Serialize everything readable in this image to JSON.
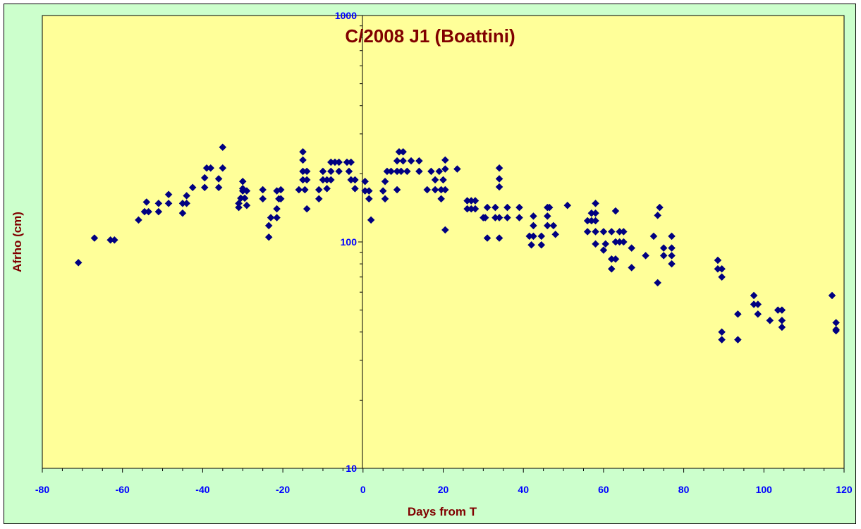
{
  "colors": {
    "background": "#ccffcc",
    "plot_area": "#ffff99",
    "marker": "#000080",
    "tick_label": "#0000ff",
    "title": "#800000"
  },
  "chart_data": {
    "type": "scatter",
    "title": "C/2008 J1 (Boattini)",
    "xlabel": "Days from T",
    "ylabel": "Afrho (cm)",
    "xlim": [
      -80,
      120
    ],
    "ylim": [
      10,
      1000
    ],
    "y_scale": "log",
    "grid": false,
    "legend": "none",
    "marker": "diamond",
    "x_ticks": [
      -80,
      -60,
      -40,
      -20,
      0,
      20,
      40,
      60,
      80,
      100,
      120
    ],
    "x_tick_labels": [
      "-80",
      "-60",
      "-40",
      "-20",
      "0",
      "20",
      "40",
      "60",
      "80",
      "100",
      "120"
    ],
    "y_ticks": [
      10,
      100,
      1000
    ],
    "y_tick_labels": [
      "10",
      "100",
      "1000"
    ],
    "series": [
      {
        "points": [
          [
            -71,
            81
          ],
          [
            -67,
            104
          ],
          [
            -63,
            102
          ],
          [
            -62,
            102
          ],
          [
            -56,
            125
          ],
          [
            -54.5,
            136
          ],
          [
            -54,
            150
          ],
          [
            -53.5,
            136
          ],
          [
            -51,
            136
          ],
          [
            -51,
            148
          ],
          [
            -48.5,
            148
          ],
          [
            -48.5,
            162
          ],
          [
            -45,
            134
          ],
          [
            -45,
            148
          ],
          [
            -44,
            148
          ],
          [
            -44,
            160
          ],
          [
            -42.5,
            174
          ],
          [
            -39.5,
            174
          ],
          [
            -39.5,
            192
          ],
          [
            -39,
            212
          ],
          [
            -38,
            212
          ],
          [
            -36,
            174
          ],
          [
            -36,
            190
          ],
          [
            -35,
            212
          ],
          [
            -35,
            262
          ],
          [
            -31,
            142
          ],
          [
            -31,
            148
          ],
          [
            -30.5,
            156
          ],
          [
            -30,
            168
          ],
          [
            -30,
            172
          ],
          [
            -30,
            185
          ],
          [
            -29.5,
            156
          ],
          [
            -29,
            145
          ],
          [
            -29,
            168
          ],
          [
            -25,
            155
          ],
          [
            -25,
            170
          ],
          [
            -23.5,
            105
          ],
          [
            -23.5,
            118
          ],
          [
            -23,
            128
          ],
          [
            -21.5,
            140
          ],
          [
            -21.5,
            168
          ],
          [
            -21.5,
            128
          ],
          [
            -21,
            155
          ],
          [
            -20.5,
            155
          ],
          [
            -20.5,
            170
          ],
          [
            -16,
            170
          ],
          [
            -15,
            230
          ],
          [
            -15,
            250
          ],
          [
            -15,
            205
          ],
          [
            -15,
            188
          ],
          [
            -14.5,
            170
          ],
          [
            -14,
            205
          ],
          [
            -14,
            188
          ],
          [
            -14,
            140
          ],
          [
            -11,
            155
          ],
          [
            -11,
            170
          ],
          [
            -10,
            188
          ],
          [
            -10,
            205
          ],
          [
            -9,
            172
          ],
          [
            -9,
            188
          ],
          [
            -8,
            188
          ],
          [
            -8,
            205
          ],
          [
            -8,
            225
          ],
          [
            -7,
            225
          ],
          [
            -6,
            205
          ],
          [
            -6,
            225
          ],
          [
            -4,
            225
          ],
          [
            -3.5,
            205
          ],
          [
            -3,
            188
          ],
          [
            -3,
            225
          ],
          [
            -2,
            188
          ],
          [
            -2,
            172
          ],
          [
            0.5,
            185
          ],
          [
            0.5,
            168
          ],
          [
            1.5,
            168
          ],
          [
            1.5,
            155
          ],
          [
            2,
            125
          ],
          [
            5,
            168
          ],
          [
            5.5,
            155
          ],
          [
            5.5,
            185
          ],
          [
            6,
            205
          ],
          [
            7,
            205
          ],
          [
            8.5,
            170
          ],
          [
            8.5,
            205
          ],
          [
            8.5,
            228
          ],
          [
            9,
            250
          ],
          [
            9.5,
            205
          ],
          [
            10,
            228
          ],
          [
            10,
            250
          ],
          [
            11,
            205
          ],
          [
            12,
            228
          ],
          [
            14,
            205
          ],
          [
            14,
            228
          ],
          [
            16,
            170
          ],
          [
            17,
            205
          ],
          [
            18,
            170
          ],
          [
            18,
            188
          ],
          [
            19,
            205
          ],
          [
            19.5,
            155
          ],
          [
            19.5,
            170
          ],
          [
            20,
            188
          ],
          [
            20.5,
            170
          ],
          [
            20.5,
            210
          ],
          [
            20.5,
            230
          ],
          [
            20.5,
            113
          ],
          [
            23.5,
            210
          ],
          [
            26,
            140
          ],
          [
            26,
            152
          ],
          [
            27,
            140
          ],
          [
            27,
            152
          ],
          [
            28,
            140
          ],
          [
            28,
            152
          ],
          [
            30,
            128
          ],
          [
            30.5,
            128
          ],
          [
            31,
            142
          ],
          [
            31,
            104
          ],
          [
            33,
            128
          ],
          [
            33,
            142
          ],
          [
            34,
            128
          ],
          [
            34,
            104
          ],
          [
            34,
            175
          ],
          [
            34,
            190
          ],
          [
            34,
            212
          ],
          [
            36,
            142
          ],
          [
            36,
            128
          ],
          [
            39,
            128
          ],
          [
            39,
            142
          ],
          [
            41.5,
            106
          ],
          [
            42,
            97
          ],
          [
            42.5,
            106
          ],
          [
            42.5,
            118
          ],
          [
            42.5,
            130
          ],
          [
            44.5,
            97
          ],
          [
            44.5,
            106
          ],
          [
            46,
            118
          ],
          [
            46,
            130
          ],
          [
            46,
            142
          ],
          [
            46.5,
            142
          ],
          [
            47.5,
            118
          ],
          [
            48,
            108
          ],
          [
            51,
            145
          ],
          [
            56,
            124
          ],
          [
            56,
            111
          ],
          [
            57,
            124
          ],
          [
            57,
            134
          ],
          [
            58,
            124
          ],
          [
            58,
            111
          ],
          [
            58,
            98
          ],
          [
            58,
            134
          ],
          [
            58,
            148
          ],
          [
            60,
            92
          ],
          [
            60,
            111
          ],
          [
            60.5,
            98
          ],
          [
            62,
            111
          ],
          [
            62,
            84
          ],
          [
            62,
            76
          ],
          [
            63,
            84
          ],
          [
            63,
            100
          ],
          [
            63,
            137
          ],
          [
            64,
            100
          ],
          [
            64,
            111
          ],
          [
            65,
            100
          ],
          [
            65,
            111
          ],
          [
            67,
            94
          ],
          [
            67,
            77
          ],
          [
            70.5,
            87
          ],
          [
            72.5,
            106
          ],
          [
            73.5,
            66
          ],
          [
            73.5,
            131
          ],
          [
            74,
            142
          ],
          [
            75,
            87
          ],
          [
            75,
            94
          ],
          [
            77,
            106
          ],
          [
            77,
            94
          ],
          [
            77,
            87
          ],
          [
            77,
            80
          ],
          [
            88.5,
            83
          ],
          [
            88.5,
            76
          ],
          [
            89.5,
            76
          ],
          [
            89.5,
            70
          ],
          [
            89.5,
            40
          ],
          [
            89.5,
            37
          ],
          [
            93.5,
            48
          ],
          [
            93.5,
            37
          ],
          [
            97.5,
            58
          ],
          [
            97.5,
            53
          ],
          [
            98.5,
            53
          ],
          [
            98.5,
            48
          ],
          [
            101.5,
            45
          ],
          [
            103.5,
            50
          ],
          [
            104.5,
            50
          ],
          [
            104.5,
            45
          ],
          [
            104.5,
            42
          ],
          [
            117,
            58
          ],
          [
            118,
            44
          ],
          [
            118,
            41
          ],
          [
            118,
            40.5
          ]
        ]
      }
    ]
  }
}
